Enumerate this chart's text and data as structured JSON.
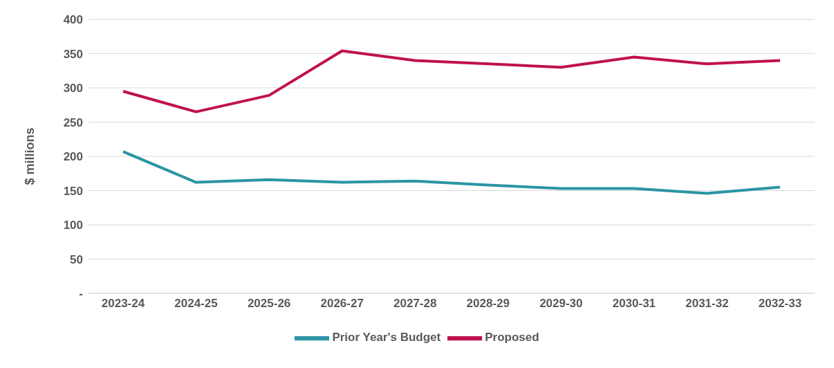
{
  "chart_data": {
    "type": "line",
    "ylabel": "$ millions",
    "categories": [
      "2023-24",
      "2024-25",
      "2025-26",
      "2026-27",
      "2027-28",
      "2028-29",
      "2029-30",
      "2030-31",
      "2031-32",
      "2032-33"
    ],
    "series": [
      {
        "name": "Prior Year's Budget",
        "color": "#2b95a3",
        "values": [
          207,
          162,
          166,
          162,
          164,
          158,
          153,
          153,
          146,
          155
        ]
      },
      {
        "name": "Proposed",
        "color": "#c0104f",
        "values": [
          295,
          265,
          289,
          354,
          340,
          335,
          330,
          345,
          335,
          340
        ]
      }
    ],
    "ylim": [
      0,
      400
    ],
    "yticks": [
      {
        "value": 0,
        "label": "-"
      },
      50,
      100,
      150,
      200,
      250,
      300,
      350,
      400
    ],
    "grid": "y",
    "legend": "bottom",
    "marker": "none",
    "line_style": "solid"
  }
}
